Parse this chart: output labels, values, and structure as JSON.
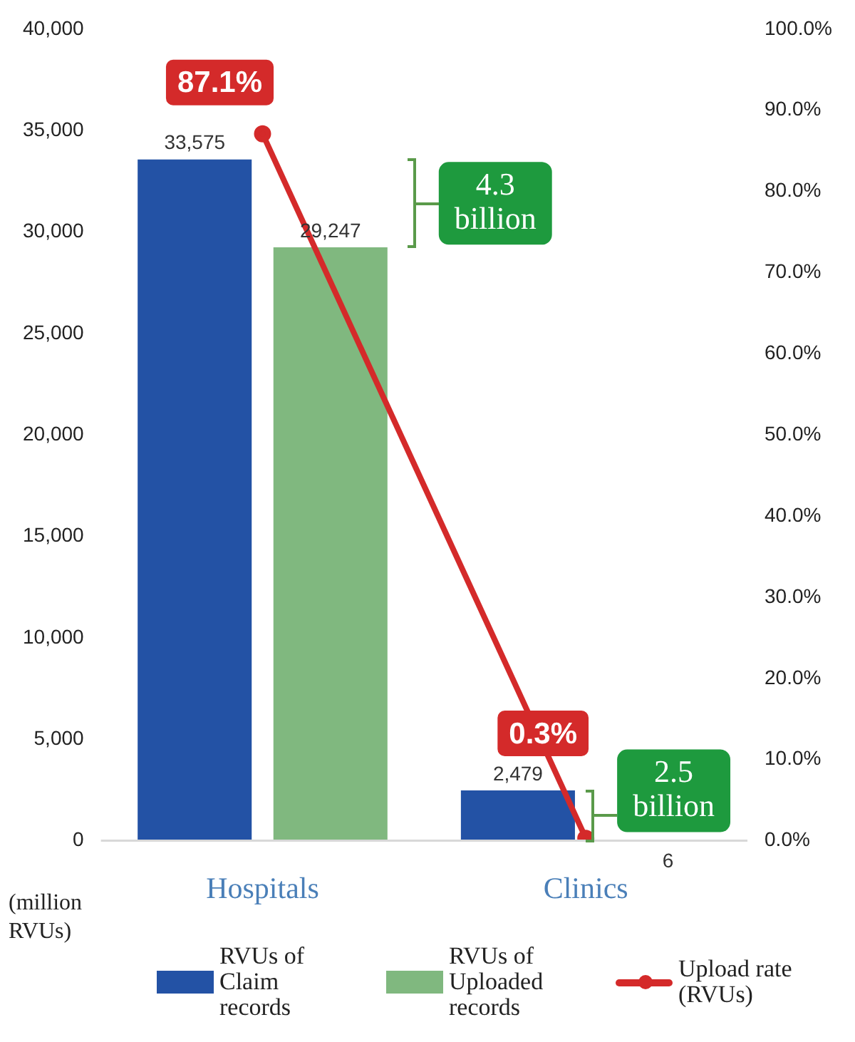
{
  "chart_data": {
    "type": "bar",
    "categories": [
      "Hospitals",
      "Clinics"
    ],
    "series": [
      {
        "name": "RVUs of Claim records",
        "color": "#2352a5",
        "values": [
          33575,
          2479
        ],
        "value_labels": [
          "33,575",
          "2,479"
        ]
      },
      {
        "name": "RVUs of Uploaded records",
        "color": "#80b87f",
        "values": [
          29247,
          6
        ],
        "value_labels": [
          "29,247",
          "6"
        ]
      },
      {
        "name": "Upload rate (RVUs)",
        "type": "line",
        "axis": "y2",
        "color": "#d42a2a",
        "values": [
          87.1,
          0.3
        ],
        "value_labels": [
          "87.1%",
          "0.3%"
        ]
      }
    ],
    "ylabel": "(million RVUs)",
    "ylim": [
      0,
      40000
    ],
    "yticks": [
      0,
      {
        "value": 5000,
        "label": "5,000"
      },
      {
        "value": 10000,
        "label": "10,000"
      },
      {
        "value": 15000,
        "label": "15,000"
      },
      {
        "value": 20000,
        "label": "20,000"
      },
      {
        "value": 25000,
        "label": "25,000"
      },
      {
        "value": 30000,
        "label": "30,000"
      },
      {
        "value": 35000,
        "label": "35,000"
      },
      {
        "value": 40000,
        "label": "40,000"
      }
    ],
    "y2lim": [
      0,
      100
    ],
    "y2ticks": [
      {
        "value": 0,
        "label": "0.0%"
      },
      {
        "value": 10,
        "label": "10.0%"
      },
      {
        "value": 20,
        "label": "20.0%"
      },
      {
        "value": 30,
        "label": "30.0%"
      },
      {
        "value": 40,
        "label": "40.0%"
      },
      {
        "value": 50,
        "label": "50.0%"
      },
      {
        "value": 60,
        "label": "60.0%"
      },
      {
        "value": 70,
        "label": "70.0%"
      },
      {
        "value": 80,
        "label": "80.0%"
      },
      {
        "value": 90,
        "label": "90.0%"
      },
      {
        "value": 100,
        "label": "100.0%"
      }
    ],
    "annotations": [
      "4.3 billion",
      "2.5 billion"
    ],
    "grid": false,
    "legend": "bottom",
    "marker": "circle",
    "line_style": "solid"
  }
}
